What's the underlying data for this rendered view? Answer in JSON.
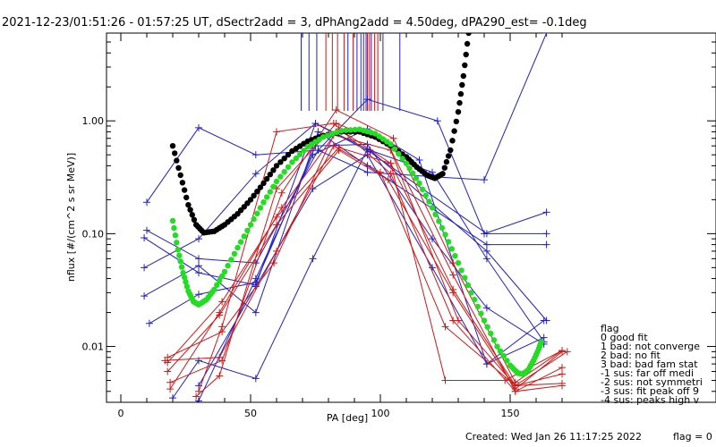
{
  "chart_data": {
    "type": "line",
    "title": "2021-12-23/01:51:26 - 01:57:25 UT, dSectr2add = 3, dPhAng2add = 4.50deg, dPA290_est=  -0.1deg",
    "xlabel": "PA [deg]",
    "ylabel": "nflux [#/(cm^2 s sr MeV)]",
    "xlim": [
      -5,
      183
    ],
    "ylim": [
      0.0032,
      6.0
    ],
    "yscale": "log",
    "x_ticks": [
      0,
      50,
      100,
      150
    ],
    "x_tick_labels": [
      "0",
      "50",
      "100",
      "150"
    ],
    "y_ticks": [
      0.01,
      0.1,
      1.0
    ],
    "y_tick_labels": [
      "0.01",
      "0.10",
      "1.00"
    ],
    "colors": {
      "blue": "#2020c8",
      "red": "#d01818",
      "black": "#000000",
      "green": "#22dd22"
    },
    "series": [
      {
        "color": "blue",
        "points": [
          [
            9,
            0.05
          ],
          [
            30,
            0.09
          ],
          [
            52,
            0.34
          ],
          [
            75,
            0.95
          ],
          [
            96,
            0.55
          ],
          [
            141,
            0.07
          ],
          [
            164,
            0.017
          ]
        ]
      },
      {
        "color": "blue",
        "points": [
          [
            10,
            0.19
          ],
          [
            30,
            0.87
          ],
          [
            52,
            0.5
          ],
          [
            76,
            0.55
          ],
          [
            95,
            0.35
          ],
          [
            120,
            0.32
          ],
          [
            140,
            0.3
          ],
          [
            164,
            6.0
          ]
        ]
      },
      {
        "color": "blue",
        "points": [
          [
            10,
            0.107
          ],
          [
            30,
            0.06
          ],
          [
            52,
            0.055
          ],
          [
            76,
            0.55
          ],
          [
            95,
            1.55
          ],
          [
            122,
            1.0
          ],
          [
            140,
            0.1
          ],
          [
            164,
            0.155
          ]
        ]
      },
      {
        "color": "blue",
        "points": [
          [
            9,
            0.092
          ],
          [
            30,
            0.045
          ],
          [
            52,
            0.035
          ],
          [
            75,
            0.95
          ],
          [
            96,
            0.53
          ],
          [
            141,
            0.1
          ],
          [
            164,
            0.1
          ]
        ]
      },
      {
        "color": "blue",
        "points": [
          [
            9,
            0.028
          ],
          [
            30,
            0.052
          ],
          [
            52,
            0.02
          ],
          [
            76,
            0.8
          ],
          [
            95,
            0.4
          ],
          [
            141,
            0.08
          ],
          [
            164,
            0.08
          ]
        ]
      },
      {
        "color": "blue",
        "points": [
          [
            11,
            0.016
          ],
          [
            30,
            0.029
          ],
          [
            52,
            0.037
          ],
          [
            75,
            0.6
          ],
          [
            95,
            0.62
          ],
          [
            120,
            0.09
          ],
          [
            141,
            0.022
          ],
          [
            163,
            0.0105
          ]
        ]
      },
      {
        "color": "blue",
        "points": [
          [
            20,
            0.0035
          ],
          [
            30,
            0.0075
          ],
          [
            52,
            0.0052
          ],
          [
            74,
            0.06
          ],
          [
            95,
            0.56
          ],
          [
            120,
            0.35
          ],
          [
            141,
            0.06
          ],
          [
            163,
            0.011
          ]
        ]
      },
      {
        "color": "blue",
        "points": [
          [
            30,
            0.0045
          ],
          [
            52,
            0.034
          ],
          [
            74,
            0.25
          ],
          [
            95,
            0.5
          ],
          [
            120,
            0.05
          ],
          [
            141,
            0.007
          ],
          [
            163,
            0.012
          ]
        ]
      },
      {
        "color": "blue",
        "points": [
          [
            22,
            0.0026
          ],
          [
            30,
            0.0033
          ],
          [
            52,
            0.04
          ],
          [
            74,
            0.5
          ],
          [
            95,
            0.85
          ],
          [
            115,
            0.45
          ],
          [
            141,
            0.007
          ],
          [
            163,
            0.017
          ]
        ]
      },
      {
        "color": "red",
        "points": [
          [
            17,
            0.0075
          ],
          [
            38,
            0.008
          ],
          [
            60,
            0.07
          ],
          [
            82,
            0.6
          ],
          [
            100,
            0.35
          ],
          [
            125,
            0.015
          ],
          [
            152,
            0.0045
          ],
          [
            172,
            0.009
          ]
        ]
      },
      {
        "color": "red",
        "points": [
          [
            18,
            0.006
          ],
          [
            38,
            0.019
          ],
          [
            60,
            0.12
          ],
          [
            84,
            0.55
          ],
          [
            103,
            0.3
          ],
          [
            128,
            0.03
          ],
          [
            152,
            0.0042
          ],
          [
            170,
            0.009
          ]
        ]
      },
      {
        "color": "red",
        "points": [
          [
            18,
            0.008
          ],
          [
            39,
            0.0135
          ],
          [
            59,
            0.055
          ],
          [
            82,
            0.75
          ],
          [
            104,
            0.55
          ],
          [
            130,
            0.017
          ],
          [
            152,
            0.0045
          ],
          [
            170,
            0.0057
          ]
        ]
      },
      {
        "color": "red",
        "points": [
          [
            19,
            0.0048
          ],
          [
            39,
            0.0075
          ],
          [
            62,
            0.23
          ],
          [
            83,
            1.25
          ],
          [
            105,
            0.7
          ],
          [
            128,
            0.055
          ],
          [
            152,
            0.0048
          ],
          [
            170,
            0.0092
          ]
        ]
      },
      {
        "color": "red",
        "points": [
          [
            19,
            0.0042
          ],
          [
            38,
            0.02
          ],
          [
            62,
            0.17
          ],
          [
            84,
            0.85
          ],
          [
            104,
            0.42
          ],
          [
            128,
            0.032
          ],
          [
            152,
            0.0045
          ],
          [
            170,
            0.0047
          ]
        ]
      },
      {
        "color": "red",
        "points": [
          [
            30,
            0.004
          ],
          [
            39,
            0.015
          ],
          [
            60,
            0.8
          ],
          [
            82,
            0.95
          ],
          [
            104,
            0.34
          ],
          [
            128,
            0.017
          ],
          [
            152,
            0.004
          ],
          [
            170,
            0.0065
          ]
        ]
      },
      {
        "color": "red",
        "points": [
          [
            29,
            0.0036
          ],
          [
            38,
            0.0055
          ],
          [
            60,
            0.25
          ],
          [
            83,
            0.95
          ],
          [
            103,
            0.62
          ],
          [
            128,
            0.043
          ],
          [
            152,
            0.004
          ],
          [
            170,
            0.0045
          ]
        ]
      },
      {
        "color": "red",
        "points": [
          [
            18,
            0.0072
          ],
          [
            39,
            0.025
          ],
          [
            60,
            0.14
          ],
          [
            84,
            0.58
          ],
          [
            104,
            0.42
          ],
          [
            125,
            0.005
          ],
          [
            148,
            0.005
          ],
          [
            170,
            0.0092
          ]
        ]
      }
    ],
    "fits": [
      {
        "color": "black",
        "points": [
          [
            20,
            0.6
          ],
          [
            23,
            0.33
          ],
          [
            26,
            0.18
          ],
          [
            29,
            0.12
          ],
          [
            32,
            0.102
          ],
          [
            36,
            0.105
          ],
          [
            40,
            0.12
          ],
          [
            45,
            0.15
          ],
          [
            50,
            0.2
          ],
          [
            55,
            0.28
          ],
          [
            60,
            0.4
          ],
          [
            66,
            0.54
          ],
          [
            72,
            0.66
          ],
          [
            78,
            0.74
          ],
          [
            85,
            0.8
          ],
          [
            92,
            0.8
          ],
          [
            98,
            0.72
          ],
          [
            104,
            0.6
          ],
          [
            110,
            0.48
          ],
          [
            114,
            0.39
          ],
          [
            118,
            0.33
          ],
          [
            121,
            0.31
          ],
          [
            124,
            0.34
          ],
          [
            127,
            0.55
          ],
          [
            130,
            1.2
          ],
          [
            132,
            2.5
          ],
          [
            134,
            6.0
          ]
        ]
      },
      {
        "color": "green",
        "points": [
          [
            20,
            0.13
          ],
          [
            22,
            0.072
          ],
          [
            24,
            0.045
          ],
          [
            26,
            0.031
          ],
          [
            28,
            0.025
          ],
          [
            30,
            0.0235
          ],
          [
            33,
            0.026
          ],
          [
            36,
            0.032
          ],
          [
            40,
            0.046
          ],
          [
            45,
            0.075
          ],
          [
            50,
            0.12
          ],
          [
            55,
            0.19
          ],
          [
            60,
            0.29
          ],
          [
            66,
            0.43
          ],
          [
            72,
            0.59
          ],
          [
            78,
            0.72
          ],
          [
            85,
            0.82
          ],
          [
            92,
            0.84
          ],
          [
            98,
            0.77
          ],
          [
            104,
            0.62
          ],
          [
            110,
            0.42
          ],
          [
            115,
            0.28
          ],
          [
            120,
            0.17
          ],
          [
            125,
            0.098
          ],
          [
            130,
            0.055
          ],
          [
            135,
            0.03
          ],
          [
            140,
            0.017
          ],
          [
            145,
            0.01
          ],
          [
            150,
            0.0068
          ],
          [
            153,
            0.0058
          ],
          [
            155,
            0.0057
          ],
          [
            157,
            0.0062
          ],
          [
            159,
            0.0075
          ],
          [
            161,
            0.0095
          ],
          [
            162,
            0.011
          ]
        ]
      }
    ],
    "vertical_lines": [
      {
        "x": 69.5,
        "color": "blue"
      },
      {
        "x": 72.5,
        "color": "blue"
      },
      {
        "x": 75.5,
        "color": "blue"
      },
      {
        "x": 79,
        "color": "red"
      },
      {
        "x": 81.5,
        "color": "red"
      },
      {
        "x": 83.5,
        "color": "red"
      },
      {
        "x": 86,
        "color": "red"
      },
      {
        "x": 87.5,
        "color": "blue"
      },
      {
        "x": 89.5,
        "color": "red"
      },
      {
        "x": 91,
        "color": "blue"
      },
      {
        "x": 92.5,
        "color": "blue"
      },
      {
        "x": 93.5,
        "color": "blue"
      },
      {
        "x": 94.5,
        "color": "blue"
      },
      {
        "x": 95,
        "color": "red"
      },
      {
        "x": 95.8,
        "color": "red"
      },
      {
        "x": 96.5,
        "color": "blue"
      },
      {
        "x": 97.8,
        "color": "red"
      },
      {
        "x": 99,
        "color": "red"
      },
      {
        "x": 101,
        "color": "blue"
      },
      {
        "x": 107.5,
        "color": "blue"
      }
    ]
  },
  "legend": {
    "title": "flag",
    "items": [
      "0 good fit",
      "1 bad: not converge",
      "2 bad: no fit",
      "3 bad: bad fam stat",
      "-1 sus: far off medi",
      "-2 sus: not symmetri",
      "-3 sus: fit peak off 9",
      "-4 sus: peaks high v"
    ]
  },
  "footer": {
    "created": "Created: Wed Jan 26 11:17:25 2022",
    "flag": "flag = 0"
  }
}
